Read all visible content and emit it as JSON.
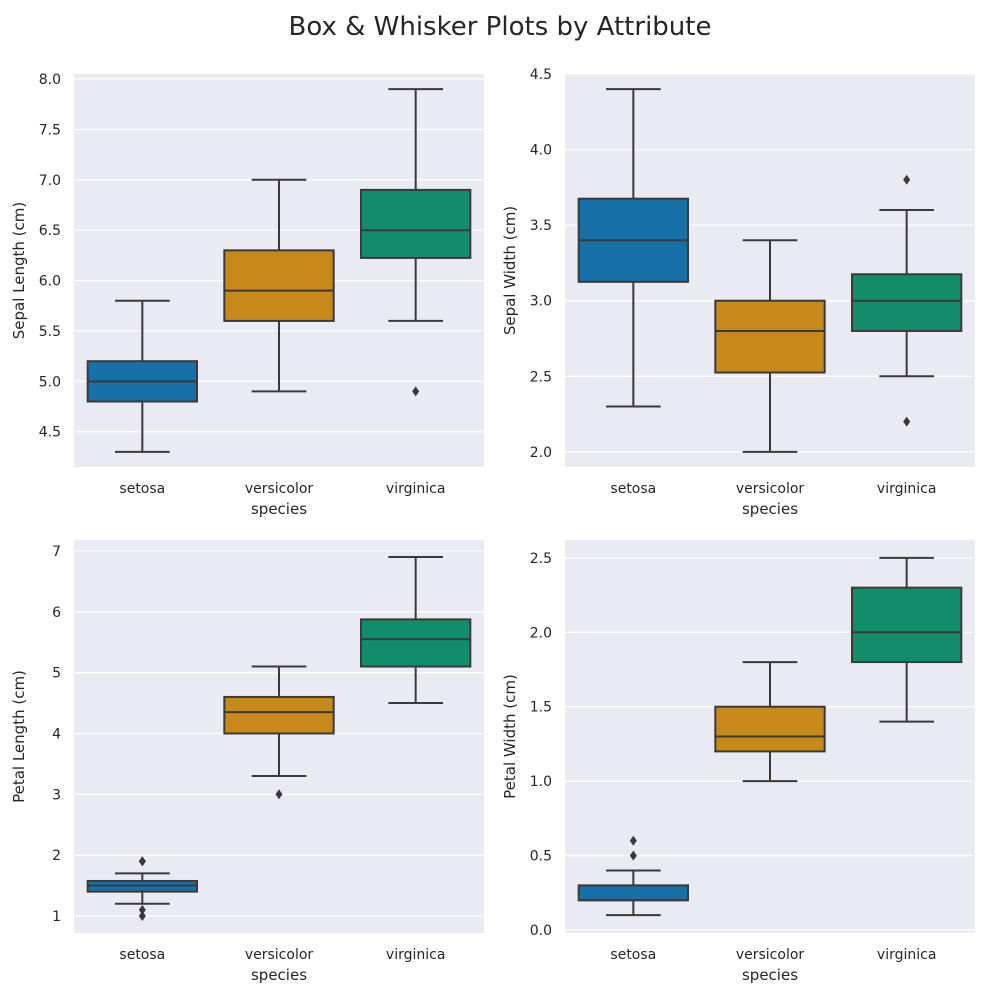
{
  "title": "Box & Whisker Plots by Attribute",
  "colors": {
    "background": "#eaeaf2",
    "grid": "#ffffff",
    "edge": "#3a3a3a",
    "setosa": "#1770a8",
    "versicolor": "#c8891b",
    "virginica": "#138c6a"
  },
  "chart_data": [
    {
      "type": "box",
      "xlabel": "species",
      "ylabel": "Sepal Length (cm)",
      "categories": [
        "setosa",
        "versicolor",
        "virginica"
      ],
      "ylim": [
        4.15,
        8.05
      ],
      "yticks": [
        "4.5",
        "5.0",
        "5.5",
        "6.0",
        "6.5",
        "7.0",
        "7.5",
        "8.0"
      ],
      "boxes": [
        {
          "min": 4.3,
          "q1": 4.8,
          "median": 5.0,
          "q3": 5.2,
          "max": 5.8,
          "outliers": []
        },
        {
          "min": 4.9,
          "q1": 5.6,
          "median": 5.9,
          "q3": 6.3,
          "max": 7.0,
          "outliers": []
        },
        {
          "min": 5.6,
          "q1": 6.225,
          "median": 6.5,
          "q3": 6.9,
          "max": 7.9,
          "outliers": [
            4.9
          ]
        }
      ]
    },
    {
      "type": "box",
      "xlabel": "species",
      "ylabel": "Sepal Width (cm)",
      "categories": [
        "setosa",
        "versicolor",
        "virginica"
      ],
      "ylim": [
        1.9,
        4.5
      ],
      "yticks": [
        "2.0",
        "2.5",
        "3.0",
        "3.5",
        "4.0",
        "4.5"
      ],
      "boxes": [
        {
          "min": 2.3,
          "q1": 3.125,
          "median": 3.4,
          "q3": 3.675,
          "max": 4.4,
          "outliers": []
        },
        {
          "min": 2.0,
          "q1": 2.525,
          "median": 2.8,
          "q3": 3.0,
          "max": 3.4,
          "outliers": []
        },
        {
          "min": 2.5,
          "q1": 2.8,
          "median": 3.0,
          "q3": 3.175,
          "max": 3.6,
          "outliers": [
            3.8,
            2.2
          ]
        }
      ]
    },
    {
      "type": "box",
      "xlabel": "species",
      "ylabel": "Petal Length (cm)",
      "categories": [
        "setosa",
        "versicolor",
        "virginica"
      ],
      "ylim": [
        0.72,
        7.18
      ],
      "yticks": [
        "1",
        "2",
        "3",
        "4",
        "5",
        "6",
        "7"
      ],
      "boxes": [
        {
          "min": 1.2,
          "q1": 1.4,
          "median": 1.5,
          "q3": 1.575,
          "max": 1.7,
          "outliers": [
            1.9,
            1.9,
            1.1,
            1.0
          ]
        },
        {
          "min": 3.3,
          "q1": 4.0,
          "median": 4.35,
          "q3": 4.6,
          "max": 5.1,
          "outliers": [
            3.0
          ]
        },
        {
          "min": 4.5,
          "q1": 5.1,
          "median": 5.55,
          "q3": 5.875,
          "max": 6.9,
          "outliers": []
        }
      ]
    },
    {
      "type": "box",
      "xlabel": "species",
      "ylabel": "Petal Width (cm)",
      "categories": [
        "setosa",
        "versicolor",
        "virginica"
      ],
      "ylim": [
        -0.02,
        2.62
      ],
      "yticks": [
        "0.0",
        "0.5",
        "1.0",
        "1.5",
        "2.0",
        "2.5"
      ],
      "boxes": [
        {
          "min": 0.1,
          "q1": 0.2,
          "median": 0.2,
          "q3": 0.3,
          "max": 0.4,
          "outliers": [
            0.5,
            0.6
          ]
        },
        {
          "min": 1.0,
          "q1": 1.2,
          "median": 1.3,
          "q3": 1.5,
          "max": 1.8,
          "outliers": []
        },
        {
          "min": 1.4,
          "q1": 1.8,
          "median": 2.0,
          "q3": 2.3,
          "max": 2.5,
          "outliers": []
        }
      ]
    }
  ]
}
